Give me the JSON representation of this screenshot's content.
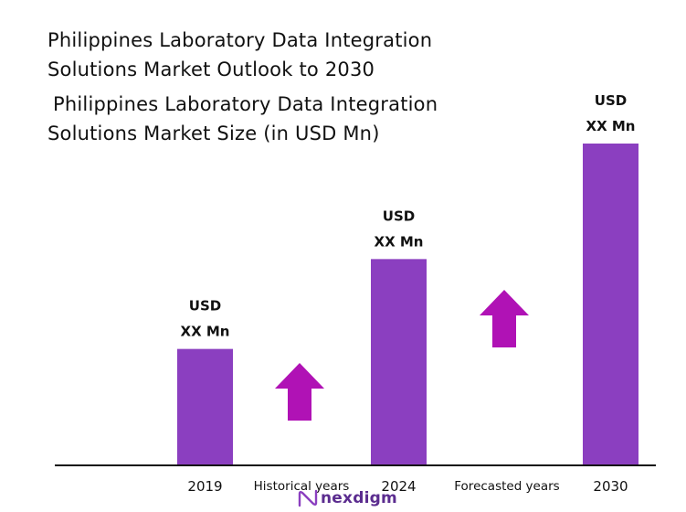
{
  "header": {
    "title_line1": "Philippines Laboratory Data Integration",
    "title_line2": "Solutions Market Outlook to 2030",
    "subtitle_line1": "Philippines Laboratory Data Integration",
    "subtitle_line2": "Solutions Market Size (in USD Mn)"
  },
  "chart_data": {
    "type": "bar",
    "title": "Philippines Laboratory Data Integration Solutions Market Outlook to 2030",
    "subtitle": "Philippines Laboratory Data Integration Solutions Market Size (in USD Mn)",
    "categories": [
      "2019",
      "2024",
      "2030"
    ],
    "values": [
      36,
      64,
      100
    ],
    "value_labels": [
      [
        "USD",
        "XX Mn"
      ],
      [
        "USD",
        "XX Mn"
      ],
      [
        "USD",
        "XX Mn"
      ]
    ],
    "period_labels": [
      "Historical years",
      "Forecasted years"
    ],
    "ylim": [
      0,
      100
    ],
    "xlabel": "",
    "ylabel": "",
    "grid": false,
    "legend": "none",
    "growth_arrows": 2,
    "colors": {
      "bar": "#8b3fc0",
      "arrow": "#b012b5",
      "axis": "#111111"
    }
  },
  "branding": {
    "logo_text": "nexdigm",
    "logo_color": "#5b2c8f",
    "logo_icon": "nexdigm-logo-icon"
  }
}
